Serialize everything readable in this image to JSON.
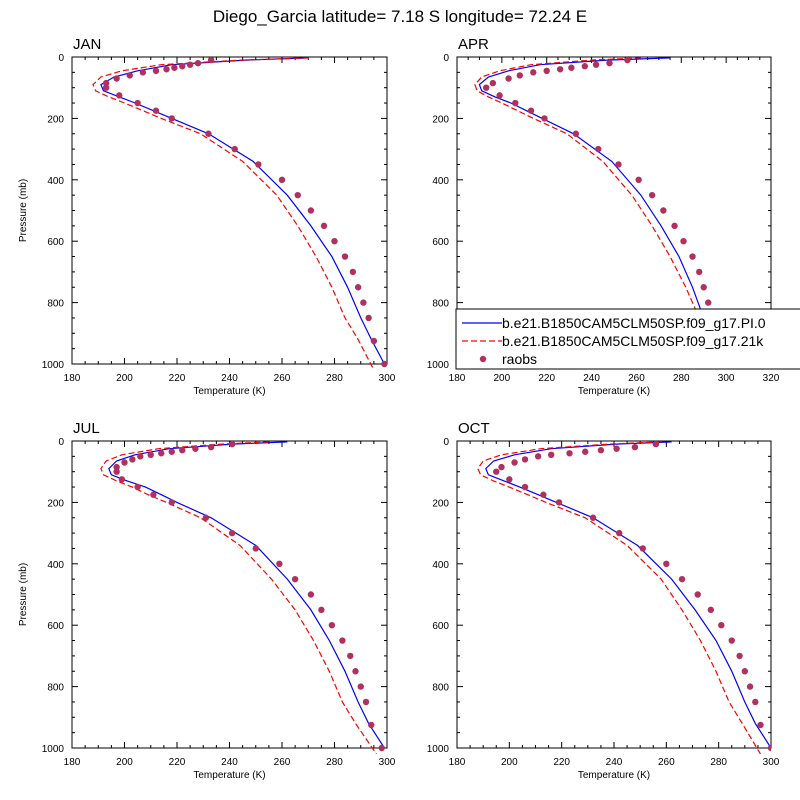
{
  "figure_title": "Diego_Garcia  latitude= 7.18 S longitude= 72.24 E",
  "legend": [
    {
      "label": "b.e21.B1850CAM5CLM50SP.f09_g17.PI.0",
      "color": "#0000ff",
      "style": "solid"
    },
    {
      "label": "b.e21.B1850CAM5CLM50SP.f09_g17.21k",
      "color": "#ff0000",
      "style": "dashed"
    },
    {
      "label": "raobs",
      "color": "#b03060",
      "style": "marker"
    }
  ],
  "chart_data": [
    {
      "type": "line",
      "title": "JAN",
      "xlabel": "Temperature (K)",
      "ylabel": "Pressure (mb)",
      "xlim": [
        180,
        300
      ],
      "ylim": [
        1000,
        0
      ],
      "xticks": [
        180,
        200,
        220,
        240,
        260,
        280,
        300
      ],
      "yticks": [
        0,
        200,
        400,
        600,
        800,
        1000
      ],
      "series": [
        {
          "name": "b.e21.B1850CAM5CLM50SP.f09_g17.PI.0",
          "color": "#0000ff",
          "temp": [
            270,
            246,
            218,
            205,
            196,
            191,
            192,
            198,
            204,
            211,
            218,
            232,
            249,
            262,
            271,
            279,
            285,
            290,
            294,
            299
          ],
          "pres": [
            3,
            10,
            25,
            45,
            65,
            90,
            110,
            130,
            150,
            175,
            200,
            250,
            340,
            450,
            550,
            650,
            750,
            850,
            920,
            1000
          ]
        },
        {
          "name": "b.e21.B1850CAM5CLM50SP.f09_g17.21k",
          "color": "#ff0000",
          "temp": [
            270,
            244,
            214,
            199,
            191,
            188,
            189,
            194,
            200,
            207,
            214,
            229,
            245,
            258,
            266,
            273,
            279,
            284,
            289,
            295
          ],
          "pres": [
            3,
            10,
            25,
            45,
            65,
            90,
            110,
            130,
            150,
            175,
            200,
            250,
            340,
            450,
            550,
            650,
            750,
            850,
            920,
            1020
          ]
        },
        {
          "name": "raobs",
          "color": "#b03060",
          "temp": [
            233,
            228,
            225,
            222,
            219,
            216,
            212,
            207,
            202,
            197,
            193,
            193,
            198,
            205,
            212,
            218,
            232,
            242,
            251,
            260,
            266,
            271,
            276,
            280,
            284,
            287,
            289,
            291,
            293,
            295,
            299
          ],
          "pres": [
            10,
            20,
            25,
            30,
            35,
            40,
            45,
            50,
            60,
            70,
            85,
            100,
            125,
            150,
            175,
            200,
            250,
            300,
            350,
            400,
            450,
            500,
            550,
            600,
            650,
            700,
            750,
            800,
            850,
            925,
            1000
          ]
        }
      ]
    },
    {
      "type": "line",
      "title": "APR",
      "xlabel": "Temperature (K)",
      "ylabel": "",
      "xlim": [
        180,
        320
      ],
      "ylim": [
        1000,
        0
      ],
      "xticks": [
        180,
        200,
        220,
        240,
        260,
        280,
        300,
        320
      ],
      "yticks": [
        0,
        200,
        400,
        600,
        800,
        1000
      ],
      "series": [
        {
          "name": "b.e21.B1850CAM5CLM50SP.f09_g17.PI.0",
          "color": "#0000ff",
          "temp": [
            275,
            247,
            217,
            203,
            194,
            190,
            191,
            197,
            204,
            211,
            218,
            232,
            249,
            262,
            271,
            279,
            285,
            290,
            294,
            300
          ],
          "pres": [
            3,
            10,
            25,
            45,
            65,
            90,
            110,
            130,
            150,
            175,
            200,
            250,
            340,
            450,
            550,
            650,
            750,
            850,
            920,
            1000
          ]
        },
        {
          "name": "b.e21.B1850CAM5CLM50SP.f09_g17.21k",
          "color": "#ff0000",
          "temp": [
            262,
            240,
            213,
            199,
            191,
            188,
            189,
            194,
            200,
            207,
            214,
            229,
            245,
            258,
            267,
            275,
            282,
            288,
            294,
            300
          ],
          "pres": [
            3,
            10,
            25,
            45,
            65,
            90,
            110,
            130,
            150,
            175,
            200,
            250,
            340,
            450,
            550,
            650,
            750,
            850,
            920,
            1020
          ]
        },
        {
          "name": "raobs",
          "color": "#b03060",
          "temp": [
            256,
            248,
            242,
            237,
            231,
            226,
            220,
            214,
            208,
            203,
            196,
            193,
            199,
            206,
            213,
            219,
            233,
            243,
            252,
            261,
            267,
            272,
            277,
            281,
            285,
            288,
            290,
            292,
            294,
            296,
            300
          ],
          "pres": [
            10,
            20,
            25,
            30,
            35,
            40,
            45,
            50,
            60,
            70,
            85,
            100,
            125,
            150,
            175,
            200,
            250,
            300,
            350,
            400,
            450,
            500,
            550,
            600,
            650,
            700,
            750,
            800,
            850,
            925,
            1000
          ]
        }
      ]
    },
    {
      "type": "line",
      "title": "JUL",
      "xlabel": "Temperature (K)",
      "ylabel": "Pressure (mb)",
      "xlim": [
        180,
        300
      ],
      "ylim": [
        1000,
        0
      ],
      "xticks": [
        180,
        200,
        220,
        240,
        260,
        280,
        300
      ],
      "yticks": [
        0,
        200,
        400,
        600,
        800,
        1000
      ],
      "series": [
        {
          "name": "b.e21.B1850CAM5CLM50SP.f09_g17.PI.0",
          "color": "#0000ff",
          "temp": [
            262,
            241,
            217,
            204,
            197,
            194,
            195,
            201,
            208,
            214,
            220,
            233,
            250,
            262,
            271,
            278,
            284,
            289,
            293,
            299
          ],
          "pres": [
            3,
            10,
            25,
            45,
            65,
            90,
            110,
            130,
            150,
            175,
            200,
            250,
            340,
            450,
            550,
            650,
            750,
            850,
            920,
            1000
          ]
        },
        {
          "name": "b.e21.B1850CAM5CLM50SP.f09_g17.21k",
          "color": "#ff0000",
          "temp": [
            255,
            237,
            213,
            199,
            193,
            191,
            192,
            197,
            203,
            209,
            216,
            229,
            244,
            256,
            265,
            272,
            278,
            283,
            288,
            296
          ],
          "pres": [
            3,
            10,
            25,
            45,
            65,
            90,
            110,
            130,
            150,
            175,
            200,
            250,
            340,
            450,
            550,
            650,
            750,
            850,
            920,
            1020
          ]
        },
        {
          "name": "raobs",
          "color": "#b03060",
          "temp": [
            241,
            233,
            227,
            222,
            218,
            214,
            210,
            206,
            203,
            200,
            197,
            197,
            199,
            205,
            211,
            218,
            231,
            241,
            250,
            259,
            265,
            271,
            275,
            279,
            283,
            286,
            288,
            290,
            292,
            294,
            298
          ],
          "pres": [
            10,
            20,
            25,
            30,
            35,
            40,
            45,
            50,
            60,
            70,
            85,
            100,
            125,
            150,
            175,
            200,
            250,
            300,
            350,
            400,
            450,
            500,
            550,
            600,
            650,
            700,
            750,
            800,
            850,
            925,
            1000
          ]
        }
      ]
    },
    {
      "type": "line",
      "title": "OCT",
      "xlabel": "Temperature (K)",
      "ylabel": "",
      "xlim": [
        180,
        300
      ],
      "ylim": [
        1000,
        0
      ],
      "xticks": [
        180,
        200,
        220,
        240,
        260,
        280,
        300
      ],
      "yticks": [
        0,
        200,
        400,
        600,
        800,
        1000
      ],
      "series": [
        {
          "name": "b.e21.B1850CAM5CLM50SP.f09_g17.PI.0",
          "color": "#0000ff",
          "temp": [
            262,
            241,
            216,
            202,
            194,
            191,
            192,
            198,
            204,
            211,
            218,
            232,
            249,
            262,
            271,
            279,
            285,
            290,
            294,
            300
          ],
          "pres": [
            3,
            10,
            25,
            45,
            65,
            90,
            110,
            130,
            150,
            175,
            200,
            250,
            340,
            450,
            550,
            650,
            750,
            850,
            920,
            1000
          ]
        },
        {
          "name": "b.e21.B1850CAM5CLM50SP.f09_g17.21k",
          "color": "#ff0000",
          "temp": [
            258,
            238,
            212,
            197,
            190,
            188,
            189,
            194,
            200,
            207,
            214,
            229,
            245,
            258,
            266,
            273,
            279,
            284,
            289,
            296
          ],
          "pres": [
            3,
            10,
            25,
            45,
            65,
            90,
            110,
            130,
            150,
            175,
            200,
            250,
            340,
            450,
            550,
            650,
            750,
            850,
            920,
            1020
          ]
        },
        {
          "name": "raobs",
          "color": "#b03060",
          "temp": [
            256,
            248,
            241,
            235,
            229,
            223,
            216,
            211,
            206,
            202,
            197,
            195,
            200,
            206,
            213,
            219,
            232,
            242,
            251,
            260,
            266,
            272,
            277,
            281,
            285,
            288,
            290,
            292,
            294,
            296,
            300
          ],
          "pres": [
            10,
            20,
            25,
            30,
            35,
            40,
            45,
            50,
            60,
            70,
            85,
            100,
            125,
            150,
            175,
            200,
            250,
            300,
            350,
            400,
            450,
            500,
            550,
            600,
            650,
            700,
            750,
            800,
            850,
            925,
            1000
          ]
        }
      ]
    }
  ]
}
